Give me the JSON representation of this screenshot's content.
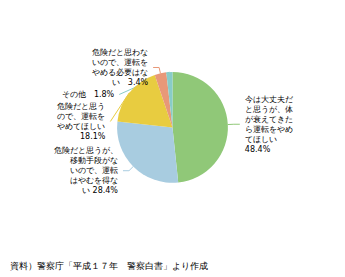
{
  "chart_data": {
    "type": "pie",
    "values": [
      48.4,
      28.4,
      18.1,
      3.4,
      1.8
    ],
    "colors": [
      "#90c878",
      "#a8cce0",
      "#e8cc40",
      "#e89878",
      "#88ccc8"
    ],
    "annotations": [
      "今は大丈夫だ\nと思うが、体\nが衰えてきた\nら運転をやめ\nてほしい\n48.4%",
      "危険だと思うが、\n移動手段がな\nいので、運転\nはやむを得な\nい 28.4%",
      "危険だと思う\nので、運転を\nやめてほしい\n18.1%",
      "危険だと思わな\nいので、運転を\nやめる必要はな\nい　3.4%",
      "その他　1.8%"
    ],
    "source": "資料）警察庁「平成１７年　警察白書」より作成"
  }
}
